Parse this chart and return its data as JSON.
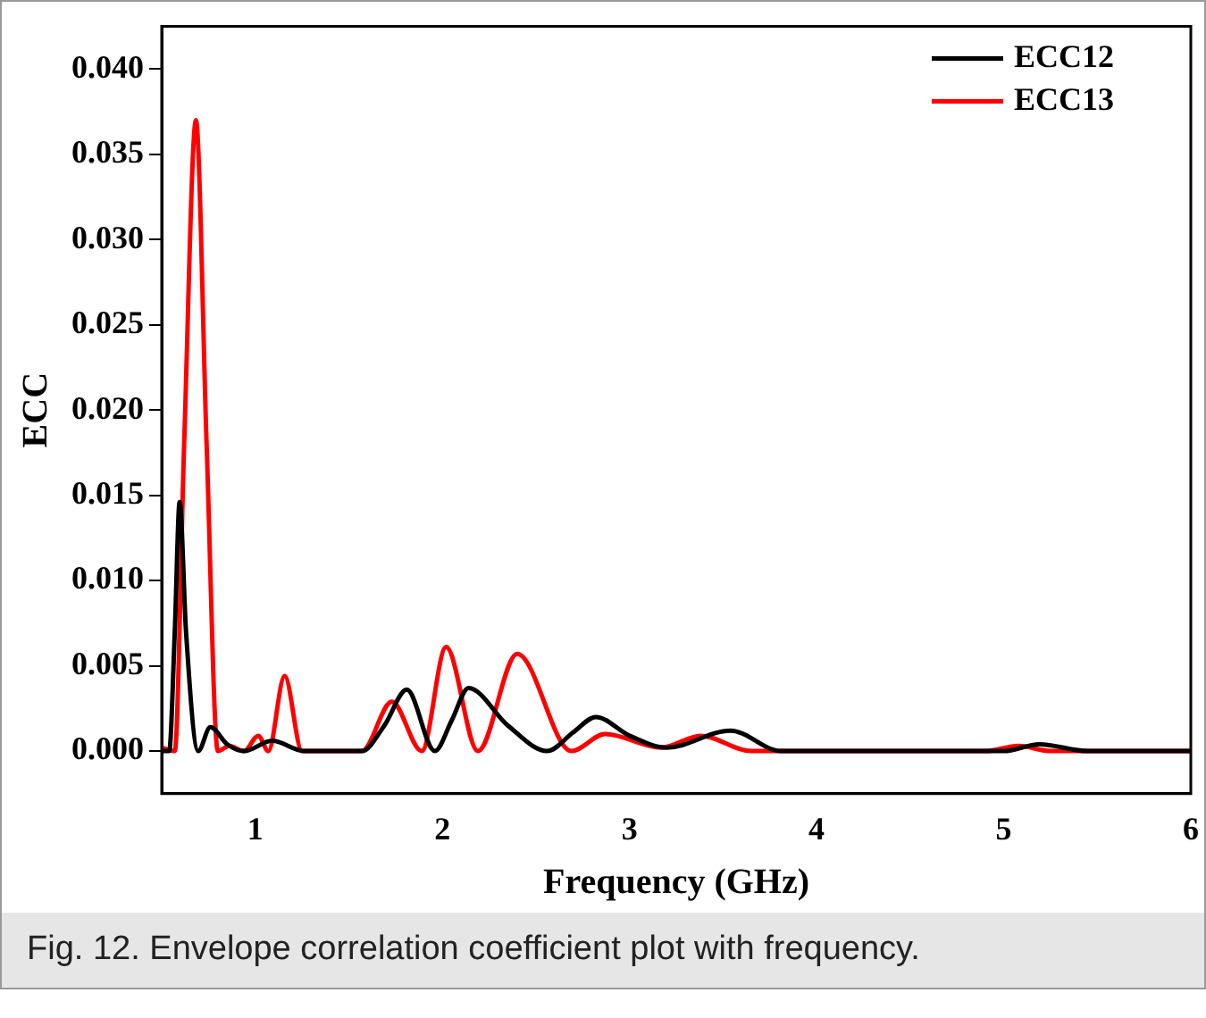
{
  "chart_data": {
    "type": "line",
    "xlabel": "Frequency (GHz)",
    "ylabel": "ECC",
    "annotations": [
      "Fig. 12.  Envelope correlation coefficient plot with frequency."
    ],
    "xlim": [
      0.5,
      6
    ],
    "xticks": [
      1,
      2,
      3,
      4,
      5,
      6
    ],
    "ylim": [
      -0.0025,
      0.0425
    ],
    "yticks": [
      {
        "value": 0,
        "label": "0.000"
      },
      {
        "value": 0.005,
        "label": "0.005"
      },
      {
        "value": 0.01,
        "label": "0.010"
      },
      {
        "value": 0.015,
        "label": "0.015"
      },
      {
        "value": 0.02,
        "label": "0.020"
      },
      {
        "value": 0.025,
        "label": "0.025"
      },
      {
        "value": 0.03,
        "label": "0.030"
      },
      {
        "value": 0.035,
        "label": "0.035"
      },
      {
        "value": 0.04,
        "label": "0.040"
      }
    ],
    "grid": false,
    "legend": "top right",
    "marker": "none",
    "line_style": "solid",
    "series": [
      {
        "name": "ECC12",
        "color": "#000000",
        "x": [
          0.5,
          0.54,
          0.57,
          0.596,
          0.63,
          0.695,
          0.76,
          0.85,
          0.94,
          1.09,
          1.26,
          1.57,
          1.69,
          1.81,
          1.96,
          2.05,
          2.14,
          2.35,
          2.56,
          2.7,
          2.82,
          3.0,
          3.2,
          3.54,
          3.81,
          5.0,
          5.19,
          5.45,
          6.0
        ],
        "values": [
          0,
          0,
          0.007,
          0.0146,
          0.007,
          0,
          0.0014,
          0.0004,
          0,
          0.0006,
          0,
          0,
          0.0015,
          0.0036,
          0,
          0.0018,
          0.0037,
          0.0015,
          0,
          0.0011,
          0.002,
          0.0009,
          0.0002,
          0.0012,
          0,
          0,
          0.0004,
          0,
          0
        ]
      },
      {
        "name": "ECC13",
        "color": "#ff0000",
        "x": [
          0.5,
          0.57,
          0.62,
          0.683,
          0.74,
          0.8,
          0.86,
          0.94,
          1.016,
          1.07,
          1.157,
          1.25,
          1.57,
          1.73,
          1.89,
          2.02,
          2.19,
          2.4,
          2.69,
          2.87,
          3.17,
          3.38,
          3.65,
          4.9,
          5.08,
          5.25,
          6.0
        ],
        "values": [
          0.0002,
          0,
          0.018,
          0.037,
          0.018,
          0,
          0.0003,
          0,
          0.0009,
          0,
          0.0044,
          0,
          0,
          0.0029,
          0,
          0.0061,
          0,
          0.0057,
          0,
          0.001,
          0.0002,
          0.0009,
          0,
          0,
          0.0003,
          0,
          0
        ]
      }
    ]
  }
}
